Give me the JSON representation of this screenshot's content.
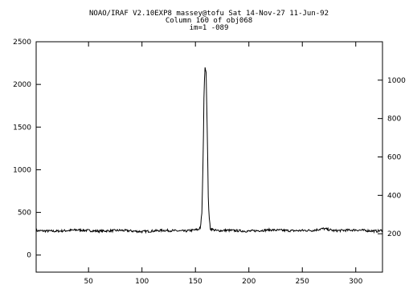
{
  "chart_data": {
    "type": "line",
    "title_lines": [
      "NOAO/IRAF V2.10EXP8 massey@tofu Sat 14-Nov-27 11-Jun-92",
      "Column 160 of obj068",
      "im=1 -089"
    ],
    "xlabel": "",
    "ylabel": "",
    "xlim": [
      1,
      325
    ],
    "ylim": [
      -200,
      2500
    ],
    "y2lim": [
      0,
      1200
    ],
    "x_ticks": [
      50,
      100,
      150,
      200,
      250,
      300
    ],
    "y_ticks": [
      0,
      500,
      1000,
      1500,
      2000,
      2500
    ],
    "y2_ticks": [
      200,
      400,
      600,
      800,
      1000
    ],
    "grid": false,
    "baseline": 285,
    "peak": {
      "x": 159,
      "y": 2230
    },
    "series": [
      {
        "values_x": [
          1,
          20,
          40,
          60,
          80,
          100,
          120,
          140,
          150,
          153,
          155,
          156,
          157,
          158,
          159,
          160,
          161,
          162,
          163,
          164,
          166,
          170,
          180,
          200,
          220,
          240,
          260,
          270,
          280,
          300,
          320,
          325
        ],
        "values_y": [
          285,
          280,
          295,
          280,
          290,
          275,
          290,
          280,
          295,
          300,
          340,
          500,
          1000,
          1850,
          2230,
          2150,
          1500,
          700,
          400,
          320,
          300,
          285,
          290,
          280,
          295,
          285,
          290,
          310,
          285,
          295,
          280,
          290
        ]
      }
    ]
  }
}
